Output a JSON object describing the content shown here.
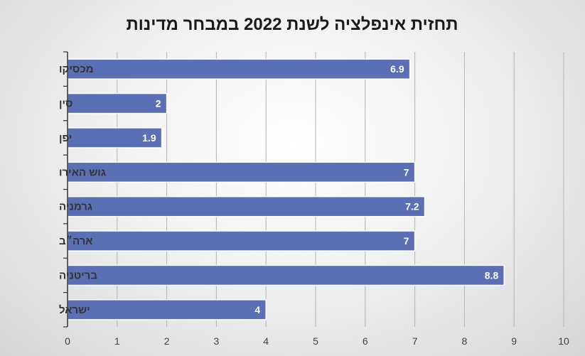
{
  "chart_data": {
    "type": "bar",
    "orientation": "horizontal",
    "title": "תחזית אינפלציה לשנת 2022 במבחר מדינות",
    "categories": [
      "מכסיקו",
      "סין",
      "יפן",
      "גוש האירו",
      "גרמניה",
      "ארה״ב",
      "בריטניה",
      "ישראל"
    ],
    "values": [
      6.9,
      2,
      1.9,
      7,
      7.2,
      7,
      8.8,
      4
    ],
    "data_labels": [
      "6.9",
      "2",
      "1.9",
      "7",
      "7.2",
      "7",
      "8.8",
      "4"
    ],
    "xlim": [
      0,
      10
    ],
    "x_ticks": [
      "0",
      "1",
      "2",
      "3",
      "4",
      "5",
      "6",
      "7",
      "8",
      "9",
      "10"
    ],
    "grid": true,
    "legend": "none",
    "colors": {
      "bar": "#5b70b4",
      "bar_border": "#ffffff",
      "grid": "#b3b3b3",
      "axis": "#333333"
    }
  }
}
